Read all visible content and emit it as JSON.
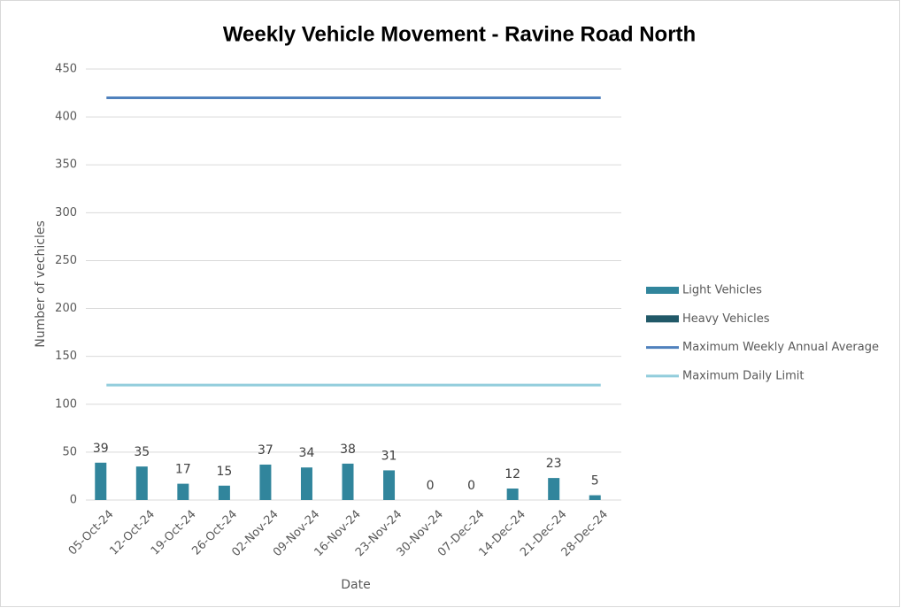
{
  "chart_data": {
    "type": "combo",
    "title": "Weekly Vehicle Movement - Ravine Road North",
    "x_label": "Date",
    "y_label": "Number of vechicles",
    "categories": [
      "05-Oct-24",
      "12-Oct-24",
      "19-Oct-24",
      "26-Oct-24",
      "02-Nov-24",
      "09-Nov-24",
      "16-Nov-24",
      "23-Nov-24",
      "30-Nov-24",
      "07-Dec-24",
      "14-Dec-24",
      "21-Dec-24",
      "28-Dec-24"
    ],
    "series": [
      {
        "name": "Light Vehicles",
        "type": "bar",
        "color": "#31859c",
        "data_labels": true,
        "values": [
          39,
          35,
          17,
          15,
          37,
          34,
          38,
          31,
          0,
          0,
          12,
          23,
          5
        ]
      },
      {
        "name": "Heavy Vehicles",
        "type": "bar",
        "color": "#215968",
        "data_labels": false,
        "values": [
          0,
          0,
          0,
          0,
          0,
          0,
          0,
          0,
          0,
          0,
          0,
          0,
          0
        ]
      },
      {
        "name": "Maximum Weekly Annual Average",
        "type": "line",
        "color": "#4f81bd",
        "data_labels": false,
        "values": [
          420,
          420,
          420,
          420,
          420,
          420,
          420,
          420,
          420,
          420,
          420,
          420,
          420
        ]
      },
      {
        "name": "Maximum Daily Limit",
        "type": "line",
        "color": "#92cddc",
        "data_labels": false,
        "values": [
          120,
          120,
          120,
          120,
          120,
          120,
          120,
          120,
          120,
          120,
          120,
          120,
          120
        ]
      }
    ],
    "ylim": [
      0,
      450
    ],
    "yticks": [
      0,
      50,
      100,
      150,
      200,
      250,
      300,
      350,
      400,
      450
    ],
    "grid": true,
    "legend": "right"
  }
}
